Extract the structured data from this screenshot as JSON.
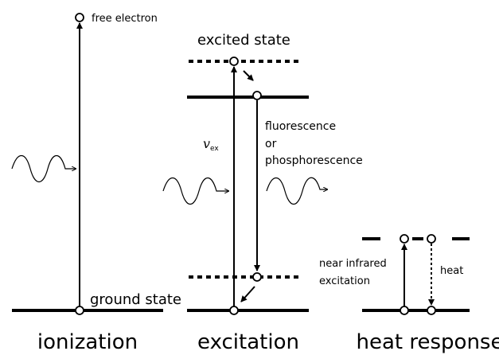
{
  "labels": {
    "free_electron": "free electron",
    "excited_state": "excited state",
    "emission": [
      "fluorescence",
      "or",
      "phosphorescence"
    ],
    "nu": "v",
    "nu_sub": "ex",
    "ground_state": "ground state",
    "nir": [
      "near infrared",
      "excitation"
    ],
    "heat": "heat"
  },
  "panels": [
    "ionization",
    "excitation",
    "heat response"
  ]
}
